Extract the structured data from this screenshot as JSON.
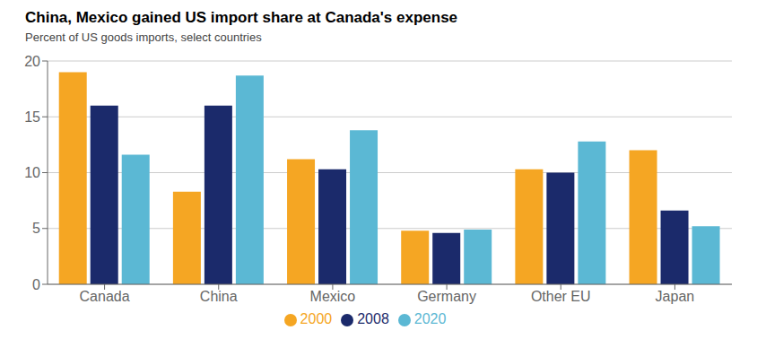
{
  "chart_data": {
    "type": "bar",
    "title": "China, Mexico gained US import share at Canada's expense",
    "subtitle": "Percent of US goods imports, select countries",
    "categories": [
      "Canada",
      "China",
      "Mexico",
      "Germany",
      "Other EU",
      "Japan"
    ],
    "series": [
      {
        "name": "2000",
        "color": "#F5A623",
        "values": [
          19.0,
          8.3,
          11.2,
          4.8,
          10.3,
          12.0
        ]
      },
      {
        "name": "2008",
        "color": "#1B2A6B",
        "values": [
          16.0,
          16.0,
          10.3,
          4.6,
          10.0,
          6.6
        ]
      },
      {
        "name": "2020",
        "color": "#5BB8D4",
        "values": [
          11.6,
          18.7,
          13.8,
          4.9,
          12.8,
          5.2
        ]
      }
    ],
    "ylim": [
      0,
      20
    ],
    "yticks": [
      0,
      5,
      10,
      15,
      20
    ],
    "grid": true,
    "legend": "bottom"
  }
}
